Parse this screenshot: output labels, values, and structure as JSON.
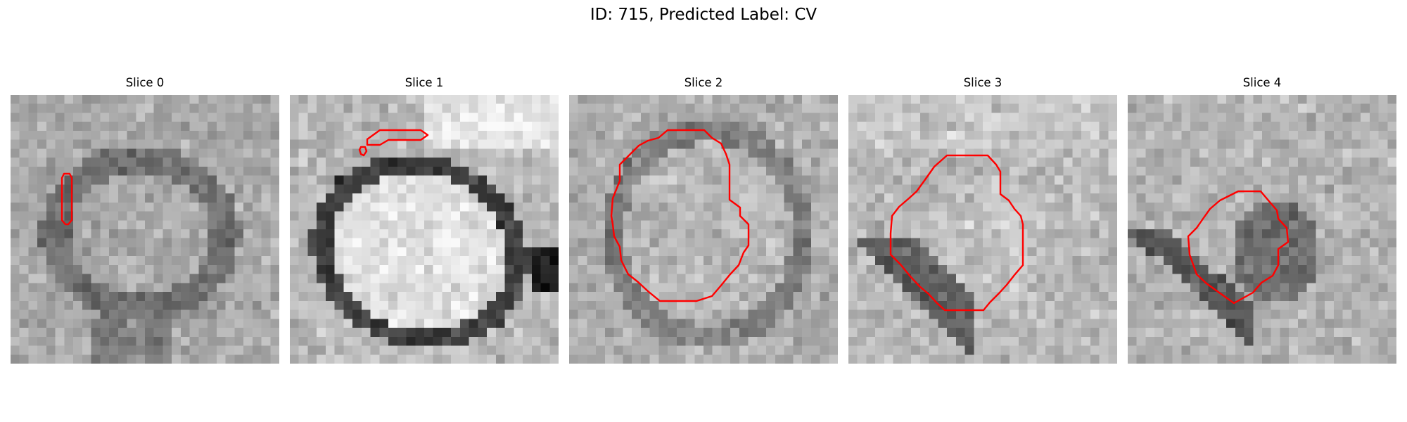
{
  "figure": {
    "title": "ID: 715, Predicted Label: CV",
    "contour_color": "#ff0000"
  },
  "slices": [
    {
      "title": "Slice 0"
    },
    {
      "title": "Slice 1"
    },
    {
      "title": "Slice 2"
    },
    {
      "title": "Slice 3"
    },
    {
      "title": "Slice 4"
    }
  ]
}
